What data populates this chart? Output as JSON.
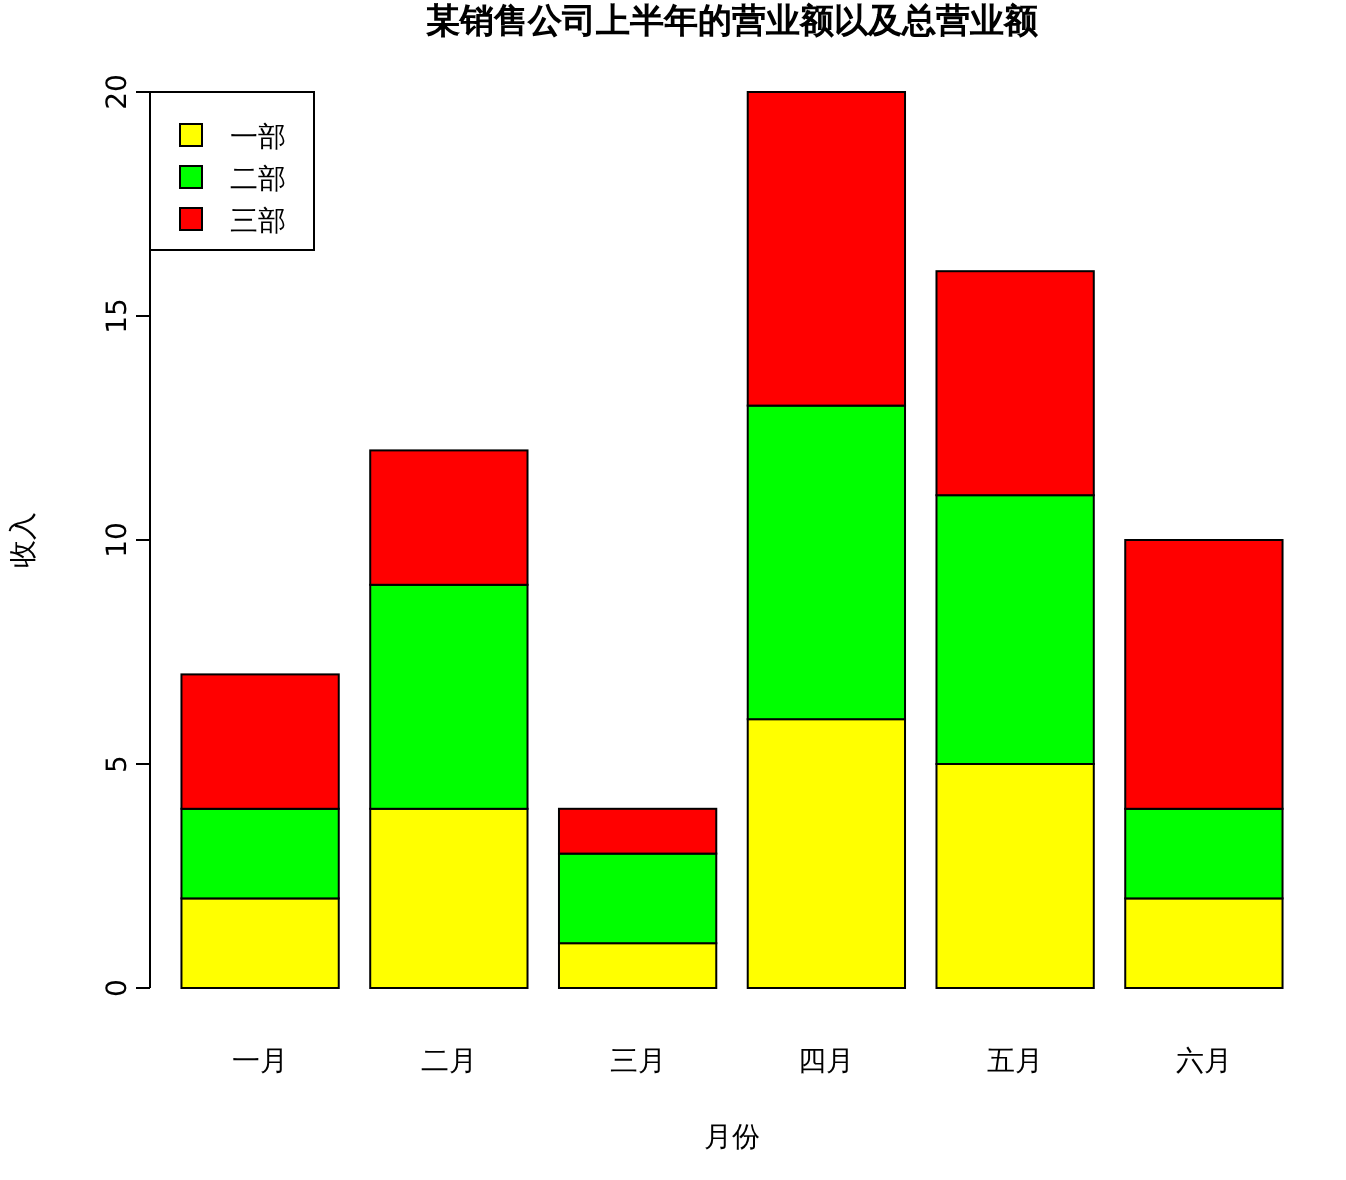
{
  "chart_data": {
    "type": "bar",
    "title": "某销售公司上半年的营业额以及总营业额",
    "xlabel": "月份",
    "ylabel": "收入",
    "categories": [
      "一月",
      "二月",
      "三月",
      "四月",
      "五月",
      "六月"
    ],
    "series": [
      {
        "name": "一部",
        "color": "#ffff00",
        "values": [
          2,
          4,
          1,
          6,
          5,
          2
        ]
      },
      {
        "name": "二部",
        "color": "#00ff00",
        "values": [
          2,
          5,
          2,
          7,
          6,
          2
        ]
      },
      {
        "name": "三部",
        "color": "#ff0000",
        "values": [
          3,
          3,
          1,
          7,
          5,
          6
        ]
      }
    ],
    "stacked": true,
    "ylim": [
      0,
      20
    ],
    "yticks": [
      0,
      5,
      10,
      15,
      20
    ],
    "legend": "top left",
    "grid": false
  }
}
